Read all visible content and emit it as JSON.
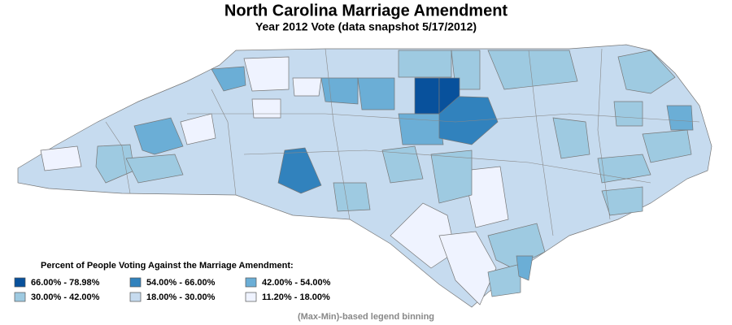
{
  "header": {
    "title": "North Carolina Marriage Amendment",
    "subtitle": "Year 2012 Vote (data snapshot 5/17/2012)"
  },
  "legend": {
    "title": "Percent of People Voting Against the Marriage Amendment:",
    "items": [
      {
        "label": "66.00% - 78.98%",
        "color": "#08519c"
      },
      {
        "label": "54.00% - 66.00%",
        "color": "#3182bd"
      },
      {
        "label": "42.00% - 54.00%",
        "color": "#6baed6"
      },
      {
        "label": "30.00% - 42.00%",
        "color": "#9ecae1"
      },
      {
        "label": "18.00% - 30.00%",
        "color": "#c6dbef"
      },
      {
        "label": "11.20% - 18.00%",
        "color": "#eff3ff"
      }
    ]
  },
  "footnote": "(Max-Min)-based legend binning"
}
